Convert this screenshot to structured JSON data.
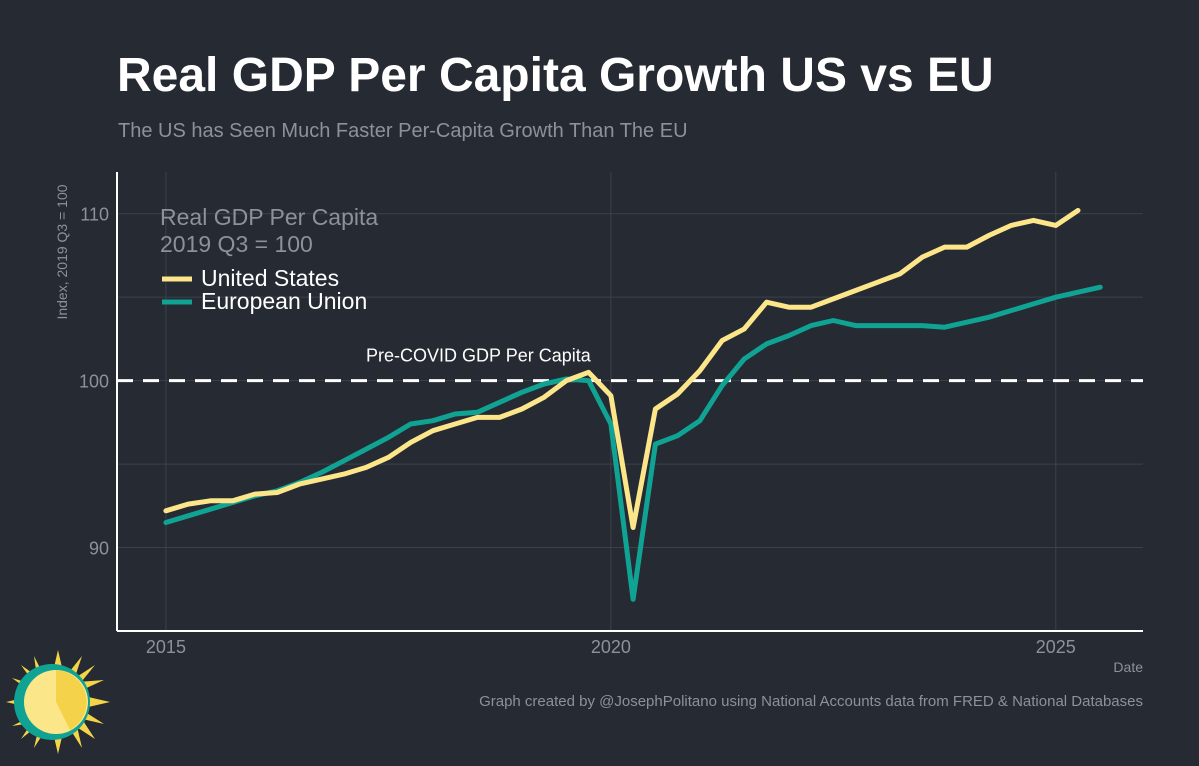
{
  "header": {
    "title": "Real GDP Per Capita Growth US vs EU",
    "subtitle": "The US has Seen Much Faster Per-Capita Growth Than The EU"
  },
  "footer": {
    "caption": "Graph created by @JosephPolitano using National Accounts data from FRED & National Databases"
  },
  "colors": {
    "background": "#252a33",
    "us": "#fde68a",
    "eu": "#10a393",
    "axis": "#ffffff",
    "grid": "#3c424d",
    "muted": "#8d9199"
  },
  "icons": {
    "logo": "sun-logo-icon"
  },
  "chart_data": {
    "type": "line",
    "title": "Real GDP Per Capita Growth US vs EU",
    "subtitle": "The US has Seen Much Faster Per-Capita Growth Than The EU",
    "xlabel": "Date",
    "ylabel": "Index, 2019 Q3 = 100",
    "xlim": [
      2014.45,
      2025.98
    ],
    "ylim": [
      85,
      112.5
    ],
    "x_ticks": [
      2015,
      2020,
      2025
    ],
    "x_tick_labels": [
      "2015",
      "2020",
      "2025"
    ],
    "y_ticks": [
      90,
      100,
      110
    ],
    "y_tick_labels": [
      "90",
      "100",
      "110"
    ],
    "grid": true,
    "legend": {
      "title_line1": "Real GDP Per Capita",
      "title_line2": "2019 Q3 = 100",
      "placement": "top-left"
    },
    "reference_line": {
      "y": 100,
      "label": "Pre-COVID GDP Per Capita",
      "style": "dashed"
    },
    "series": [
      {
        "name": "United States",
        "key": "us",
        "x": [
          2015.0,
          2015.25,
          2015.5,
          2015.75,
          2016.0,
          2016.25,
          2016.5,
          2016.75,
          2017.0,
          2017.25,
          2017.5,
          2017.75,
          2018.0,
          2018.25,
          2018.5,
          2018.75,
          2019.0,
          2019.25,
          2019.5,
          2019.75,
          2020.0,
          2020.25,
          2020.5,
          2020.75,
          2021.0,
          2021.25,
          2021.5,
          2021.75,
          2022.0,
          2022.25,
          2022.5,
          2022.75,
          2023.0,
          2023.25,
          2023.5,
          2023.75,
          2024.0,
          2024.25,
          2024.5,
          2024.75,
          2025.0,
          2025.25
        ],
        "values": [
          92.2,
          92.6,
          92.8,
          92.8,
          93.2,
          93.3,
          93.8,
          94.1,
          94.4,
          94.8,
          95.4,
          96.3,
          97.0,
          97.4,
          97.8,
          97.8,
          98.3,
          99.0,
          100.0,
          100.5,
          99.1,
          91.2,
          98.3,
          99.2,
          100.6,
          102.4,
          103.1,
          104.7,
          104.4,
          104.4,
          104.9,
          105.4,
          105.9,
          106.4,
          107.4,
          108.0,
          108.0,
          108.7,
          109.3,
          109.6,
          109.3,
          110.2
        ]
      },
      {
        "name": "European Union",
        "key": "eu",
        "x": [
          2015.0,
          2015.25,
          2015.5,
          2015.75,
          2016.0,
          2016.25,
          2016.5,
          2016.75,
          2017.0,
          2017.25,
          2017.5,
          2017.75,
          2018.0,
          2018.25,
          2018.5,
          2018.75,
          2019.0,
          2019.25,
          2019.5,
          2019.75,
          2020.0,
          2020.25,
          2020.5,
          2020.75,
          2021.0,
          2021.25,
          2021.5,
          2021.75,
          2022.0,
          2022.25,
          2022.5,
          2022.75,
          2023.0,
          2023.25,
          2023.5,
          2023.75,
          2024.0,
          2024.25,
          2024.5,
          2024.75,
          2025.0,
          2025.25,
          2025.5
        ],
        "values": [
          91.5,
          91.9,
          92.3,
          92.7,
          93.1,
          93.4,
          93.9,
          94.5,
          95.2,
          95.9,
          96.6,
          97.4,
          97.6,
          98.0,
          98.1,
          98.7,
          99.3,
          99.8,
          100.1,
          100.0,
          97.4,
          86.9,
          96.2,
          96.7,
          97.6,
          99.7,
          101.3,
          102.2,
          102.7,
          103.3,
          103.6,
          103.3,
          103.3,
          103.3,
          103.3,
          103.2,
          103.5,
          103.8,
          104.2,
          104.6,
          105.0,
          105.3,
          105.6
        ]
      }
    ]
  }
}
